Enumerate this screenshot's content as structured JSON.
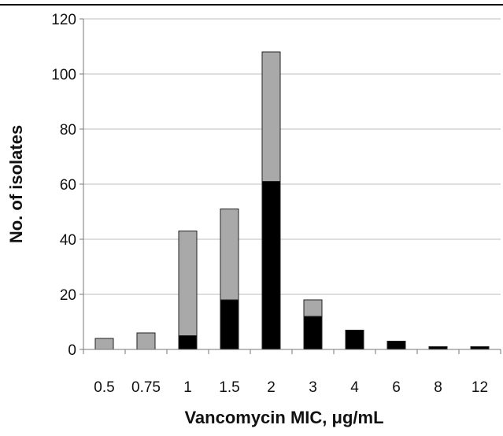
{
  "chart_data": {
    "type": "bar",
    "stacked": true,
    "title": "",
    "xlabel": "Vancomycin MIC, μg/mL",
    "ylabel": "No. of isolates",
    "categories": [
      "0.5",
      "0.75",
      "1",
      "1.5",
      "2",
      "3",
      "4",
      "6",
      "8",
      "12"
    ],
    "series": [
      {
        "values": [
          0,
          0,
          5,
          18,
          61,
          12,
          7,
          3,
          1,
          1
        ],
        "color": "#000000"
      },
      {
        "values": [
          4,
          6,
          38,
          33,
          47,
          6,
          0,
          0,
          0,
          0
        ],
        "color": "#a9a9a9"
      }
    ],
    "ylim": [
      0,
      120
    ],
    "yticks": [
      "0",
      "20",
      "40",
      "60",
      "80",
      "100",
      "120"
    ],
    "grid": true,
    "legend": "none"
  }
}
